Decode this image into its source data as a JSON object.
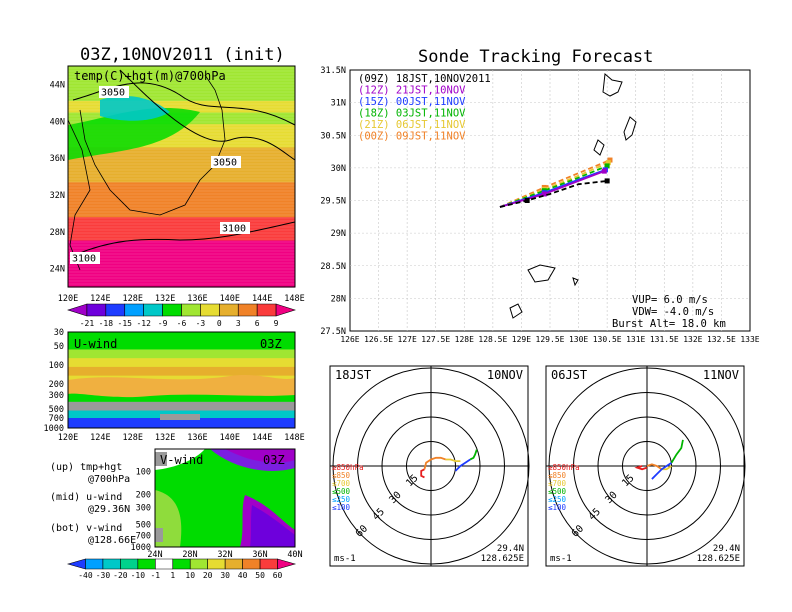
{
  "left_title": "03Z,10NOV2011 (init)",
  "right_title": "Sonde Tracking Forecast",
  "chart_data": [
    {
      "type": "heatmap",
      "name": "temp-hgt-700hPa",
      "label": "temp(C)+hgt(m)@700hPa",
      "x_ticks": [
        "120E",
        "124E",
        "128E",
        "132E",
        "136E",
        "140E",
        "144E",
        "148E"
      ],
      "y_ticks": [
        "24N",
        "28N",
        "32N",
        "36N",
        "40N",
        "44N"
      ],
      "contour_labels": [
        "3050",
        "3050",
        "3100",
        "3100"
      ],
      "colorbar": {
        "labels": [
          "-21",
          "-18",
          "-15",
          "-12",
          "-9",
          "-6",
          "-3",
          "0",
          "3",
          "6",
          "9"
        ],
        "colors": [
          "#a000c8",
          "#6e00dc",
          "#1e3cff",
          "#00a0ff",
          "#00c8c8",
          "#00dc00",
          "#a0e632",
          "#e6dc32",
          "#e6af2d",
          "#f08228",
          "#fa3c3c",
          "#f00082"
        ]
      },
      "temperature_rows_north_to_south": [
        -6,
        -6,
        -6,
        -3,
        -6,
        -3,
        -3,
        0,
        0,
        0,
        3,
        3,
        3,
        6,
        6,
        9,
        9,
        9,
        9
      ]
    },
    {
      "type": "heatmap",
      "name": "u-wind-section",
      "label": "U-wind",
      "time_label": "03Z",
      "x_ticks": [
        "120E",
        "124E",
        "128E",
        "132E",
        "136E",
        "140E",
        "144E",
        "148E"
      ],
      "y_ticks": [
        "30",
        "50",
        "100",
        "200",
        "300",
        "500",
        "700",
        "1000"
      ],
      "bands_top_to_bottom": [
        10,
        10,
        20,
        30,
        40,
        30,
        20,
        10,
        1,
        -10,
        -30
      ]
    },
    {
      "type": "heatmap",
      "name": "v-wind-section",
      "label": "V-wind",
      "time_label": "03Z",
      "x_ticks": [
        "24N",
        "28N",
        "32N",
        "36N",
        "40N"
      ],
      "y_ticks": [
        "100",
        "200",
        "300",
        "500",
        "700",
        "1000"
      ],
      "colorbar": {
        "labels": [
          "-40",
          "-30",
          "-20",
          "-10",
          "-1",
          "1",
          "10",
          "20",
          "30",
          "40",
          "50",
          "60"
        ],
        "colors": [
          "#1e3cff",
          "#00a0ff",
          "#00c8c8",
          "#00d28c",
          "#00dc00",
          "#ffffff",
          "#00dc00",
          "#a0e632",
          "#e6dc32",
          "#e6af2d",
          "#f08228",
          "#fa3c3c",
          "#f00082"
        ]
      }
    },
    {
      "type": "line",
      "name": "sonde-track-map",
      "x_ticks": [
        "126E",
        "126.5E",
        "127E",
        "127.5E",
        "128E",
        "128.5E",
        "129E",
        "129.5E",
        "130E",
        "130.5E",
        "131E",
        "131.5E",
        "132E",
        "132.5E",
        "133E"
      ],
      "y_ticks": [
        "27.5N",
        "28N",
        "28.5N",
        "29N",
        "29.5N",
        "30N",
        "30.5N",
        "31N",
        "31.5N"
      ],
      "xlim": [
        126,
        133
      ],
      "ylim": [
        27.5,
        31.5
      ],
      "start": {
        "lon": 128.625,
        "lat": 29.4
      },
      "series": [
        {
          "name": "(09Z)  18JST,10NOV2011",
          "color": "#000000",
          "dash": true,
          "lon": [
            128.625,
            129.1,
            129.5,
            130.0,
            130.5
          ],
          "lat": [
            29.4,
            29.5,
            29.6,
            29.75,
            29.8
          ]
        },
        {
          "name": "(12Z)  21JST,10NOV",
          "color": "#a000c8",
          "dash": false,
          "lon": [
            128.625,
            129.4,
            130.0,
            130.45
          ],
          "lat": [
            29.4,
            29.6,
            29.8,
            29.95
          ]
        },
        {
          "name": "(15Z)  00JST,11NOV",
          "color": "#1e3cff",
          "dash": false,
          "lon": [
            128.625,
            129.4,
            130.0,
            130.47
          ],
          "lat": [
            29.4,
            29.62,
            29.82,
            29.97
          ]
        },
        {
          "name": "(18Z)  03JST,11NOV",
          "color": "#00b400",
          "dash": true,
          "lon": [
            128.625,
            129.4,
            130.0,
            130.5
          ],
          "lat": [
            29.4,
            29.65,
            29.85,
            30.03
          ]
        },
        {
          "name": "(21Z)  06JST,11NOV",
          "color": "#e6c832",
          "dash": true,
          "lon": [
            128.625,
            129.4,
            130.0,
            130.52
          ],
          "lat": [
            29.4,
            29.67,
            29.88,
            30.08
          ]
        },
        {
          "name": "(00Z)  09JST,11NOV",
          "color": "#f08228",
          "dash": true,
          "lon": [
            128.625,
            129.4,
            130.0,
            130.55
          ],
          "lat": [
            29.4,
            29.7,
            29.92,
            30.12
          ]
        }
      ],
      "params": [
        "VUP= 6.0  m/s",
        "VDW= -4.0  m/s",
        "Burst Alt= 18.0  km"
      ]
    },
    {
      "type": "line",
      "name": "hodograph-18JST",
      "time": "18JST",
      "date": "10NOV",
      "ring_labels": [
        "15",
        "30",
        "45",
        "60"
      ],
      "units": "ms-1",
      "lat": "29.4N",
      "lon": "128.625E",
      "legend": [
        {
          "label": "≥850hPa",
          "color": "#e61e1e"
        },
        {
          "label": "≤850",
          "color": "#f08228"
        },
        {
          "label": "≤700",
          "color": "#e6c832"
        },
        {
          "label": "≤500",
          "color": "#00b400"
        },
        {
          "label": "≤250",
          "color": "#00a0ff"
        },
        {
          "label": "≤100",
          "color": "#1e3cff"
        }
      ],
      "segments": [
        {
          "color": "#e61e1e",
          "u": [
            -4,
            -6,
            -6,
            -4
          ],
          "v": [
            -2,
            -3,
            -6,
            -7
          ]
        },
        {
          "color": "#f08228",
          "u": [
            -4,
            -3,
            0,
            3,
            6,
            9
          ],
          "v": [
            -2,
            2,
            4,
            5,
            5,
            4
          ]
        },
        {
          "color": "#e6c832",
          "u": [
            9,
            12,
            15,
            18
          ],
          "v": [
            4,
            4,
            3,
            3
          ]
        },
        {
          "color": "#1e3cff",
          "u": [
            15,
            18,
            21,
            24
          ],
          "v": [
            -3,
            0,
            2,
            4
          ]
        },
        {
          "color": "#00b400",
          "u": [
            24,
            26,
            27,
            28
          ],
          "v": [
            4,
            5,
            7,
            10
          ]
        }
      ]
    },
    {
      "type": "line",
      "name": "hodograph-06JST",
      "time": "06JST",
      "date": "11NOV",
      "ring_labels": [
        "15",
        "30",
        "45",
        "60"
      ],
      "units": "ms-1",
      "lat": "29.4N",
      "lon": "128.625E",
      "legend": [
        {
          "label": "≥850hPa",
          "color": "#e61e1e"
        },
        {
          "label": "≤850",
          "color": "#f08228"
        },
        {
          "label": "≤700",
          "color": "#e6c832"
        },
        {
          "label": "≤500",
          "color": "#00b400"
        },
        {
          "label": "≤250",
          "color": "#00a0ff"
        },
        {
          "label": "≤100",
          "color": "#1e3cff"
        }
      ],
      "segments": [
        {
          "color": "#e61e1e",
          "u": [
            -3,
            -6,
            -3,
            0
          ],
          "v": [
            0,
            -1,
            -2,
            -1
          ]
        },
        {
          "color": "#f08228",
          "u": [
            0,
            3,
            6,
            9
          ],
          "v": [
            0,
            1,
            0,
            -2
          ]
        },
        {
          "color": "#e6c832",
          "u": [
            9,
            12,
            15
          ],
          "v": [
            -2,
            -2,
            0
          ]
        },
        {
          "color": "#1e3cff",
          "u": [
            3,
            6,
            9,
            12,
            15
          ],
          "v": [
            -8,
            -5,
            -2,
            0,
            2
          ]
        },
        {
          "color": "#00b400",
          "u": [
            15,
            18,
            21,
            22
          ],
          "v": [
            2,
            7,
            11,
            16
          ]
        }
      ]
    }
  ],
  "left_legend": [
    "(up) tmp+hgt",
    "@700hPa",
    "(mid) u-wind",
    "@29.36N",
    "(bot) v-wind",
    "@128.66E"
  ]
}
